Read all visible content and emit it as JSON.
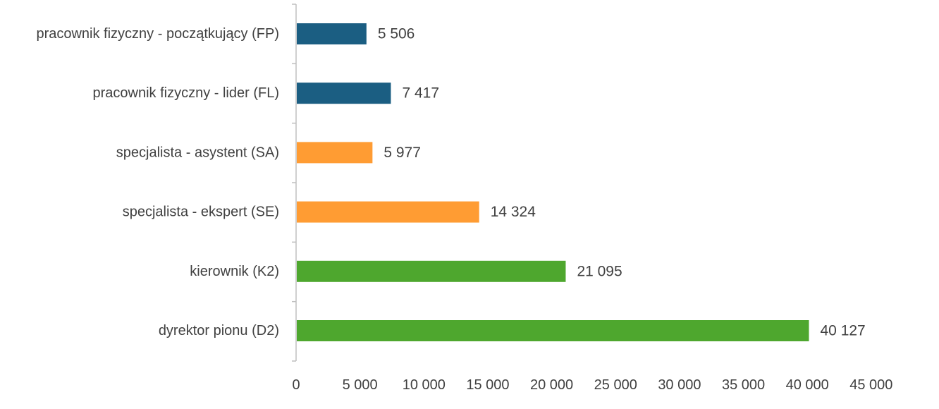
{
  "chart_data": {
    "type": "bar",
    "orientation": "horizontal",
    "categories": [
      "pracownik fizyczny - początkujący (FP)",
      "pracownik fizyczny - lider (FL)",
      "specjalista - asystent (SA)",
      "specjalista - ekspert (SE)",
      "kierownik (K2)",
      "dyrektor pionu (D2)"
    ],
    "values": [
      5506,
      7417,
      5977,
      14324,
      21095,
      40127
    ],
    "value_labels": [
      "5 506",
      "7 417",
      "5 977",
      "14 324",
      "21 095",
      "40 127"
    ],
    "bar_colors": [
      "#1b5e82",
      "#1b5e82",
      "#ff9c33",
      "#ff9c33",
      "#4ea72e",
      "#4ea72e"
    ],
    "xlim": [
      0,
      45000
    ],
    "x_ticks": [
      0,
      5000,
      10000,
      15000,
      20000,
      25000,
      30000,
      35000,
      40000,
      45000
    ],
    "x_tick_labels": [
      "0",
      "5 000",
      "10 000",
      "15 000",
      "20 000",
      "25 000",
      "30 000",
      "35 000",
      "40 000",
      "45 000"
    ],
    "grid": false,
    "legend": "none",
    "title": "",
    "xlabel": "",
    "ylabel": ""
  }
}
